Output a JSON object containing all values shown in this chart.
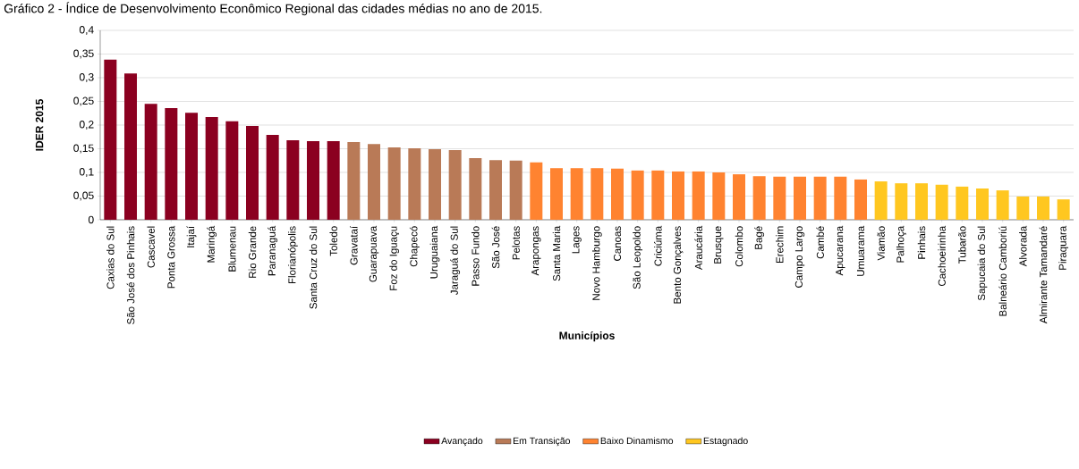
{
  "chart_data": {
    "type": "bar",
    "title": "Gráfico 2 - Índice de Desenvolvimento Econômico Regional das cidades médias no ano de 2015.",
    "xlabel": "Municípios",
    "ylabel": "IDER 2015",
    "categories": [
      "Caxias do Sul",
      "São José dos Pinhais",
      "Cascavel",
      "Ponta Grossa",
      "Itajaí",
      "Maringá",
      "Blumenau",
      "Rio Grande",
      "Paranaguá",
      "Florianópolis",
      "Santa Cruz do Sul",
      "Toledo",
      "Gravataí",
      "Guarapuava",
      "Foz do Iguaçu",
      "Chapecó",
      "Uruguaiana",
      "Jaraguá do Sul",
      "Passo Fundo",
      "São José",
      "Pelotas",
      "Arapongas",
      "Santa Maria",
      "Lages",
      "Novo Hamburgo",
      "Canoas",
      "São Leopoldo",
      "Criciúma",
      "Bento Gonçalves",
      "Araucária",
      "Brusque",
      "Colombo",
      "Bagé",
      "Erechim",
      "Campo Largo",
      "Cambé",
      "Apucarana",
      "Umuarama",
      "Viamão",
      "Palhoça",
      "Pinhais",
      "Cachoeirinha",
      "Tubarão",
      "Sapucaia do Sul",
      "Balneário Camboriú",
      "Alvorada",
      "Almirante Tamandaré",
      "Piraquara"
    ],
    "series": [
      {
        "name": "Avançado",
        "color": "#8b0020",
        "values": [
          0.338,
          0.309,
          0.245,
          0.236,
          0.226,
          0.217,
          0.208,
          0.198,
          0.179,
          0.168,
          0.166,
          0.166,
          null,
          null,
          null,
          null,
          null,
          null,
          null,
          null,
          null,
          null,
          null,
          null,
          null,
          null,
          null,
          null,
          null,
          null,
          null,
          null,
          null,
          null,
          null,
          null,
          null,
          null,
          null,
          null,
          null,
          null,
          null,
          null,
          null,
          null,
          null,
          null
        ]
      },
      {
        "name": "Em Transição",
        "color": "#b97a57",
        "values": [
          null,
          null,
          null,
          null,
          null,
          null,
          null,
          null,
          null,
          null,
          null,
          null,
          0.164,
          0.16,
          0.153,
          0.151,
          0.149,
          0.147,
          0.13,
          0.126,
          0.125,
          null,
          null,
          null,
          null,
          null,
          null,
          null,
          null,
          null,
          null,
          null,
          null,
          null,
          null,
          null,
          null,
          null,
          null,
          null,
          null,
          null,
          null,
          null,
          null,
          null,
          null,
          null
        ]
      },
      {
        "name": "Baixo Dinamismo",
        "color": "#ff8330",
        "values": [
          null,
          null,
          null,
          null,
          null,
          null,
          null,
          null,
          null,
          null,
          null,
          null,
          null,
          null,
          null,
          null,
          null,
          null,
          null,
          null,
          null,
          0.121,
          0.109,
          0.109,
          0.109,
          0.108,
          0.104,
          0.104,
          0.102,
          0.102,
          0.1,
          0.096,
          0.092,
          0.091,
          0.091,
          0.091,
          0.091,
          0.085,
          null,
          null,
          null,
          null,
          null,
          null,
          null,
          null,
          null,
          null
        ]
      },
      {
        "name": "Estagnado",
        "color": "#ffc720",
        "values": [
          null,
          null,
          null,
          null,
          null,
          null,
          null,
          null,
          null,
          null,
          null,
          null,
          null,
          null,
          null,
          null,
          null,
          null,
          null,
          null,
          null,
          null,
          null,
          null,
          null,
          null,
          null,
          null,
          null,
          null,
          null,
          null,
          null,
          null,
          null,
          null,
          null,
          null,
          0.081,
          0.077,
          0.077,
          0.074,
          0.07,
          0.066,
          0.062,
          0.049,
          0.049,
          0.043
        ]
      }
    ],
    "ylim": [
      0,
      0.4
    ],
    "yticks": [
      {
        "value": 0,
        "label": "0"
      },
      {
        "value": 0.05,
        "label": "0,05"
      },
      {
        "value": 0.1,
        "label": "0,1"
      },
      {
        "value": 0.15,
        "label": "0,15"
      },
      {
        "value": 0.2,
        "label": "0,2"
      },
      {
        "value": 0.25,
        "label": "0,25"
      },
      {
        "value": 0.3,
        "label": "0,3"
      },
      {
        "value": 0.35,
        "label": "0,35"
      },
      {
        "value": 0.4,
        "label": "0,4"
      }
    ],
    "grid": "y",
    "legend": "bottom"
  }
}
